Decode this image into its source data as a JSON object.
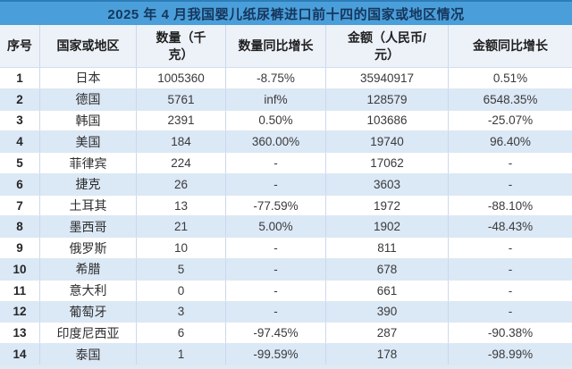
{
  "title": "2025 年 4 月我国婴儿纸尿裤进口前十四的国家或地区情况",
  "table": {
    "headers": [
      "序号",
      "国家或地区",
      "数量（千\n克）",
      "数量同比增长",
      "金额（人民币/\n元）",
      "金额同比增长"
    ],
    "rows": [
      [
        "1",
        "日本",
        "1005360",
        "-8.75%",
        "35940917",
        "0.51%"
      ],
      [
        "2",
        "德国",
        "5761",
        "inf%",
        "128579",
        "6548.35%"
      ],
      [
        "3",
        "韩国",
        "2391",
        "0.50%",
        "103686",
        "-25.07%"
      ],
      [
        "4",
        "美国",
        "184",
        "360.00%",
        "19740",
        "96.40%"
      ],
      [
        "5",
        "菲律宾",
        "224",
        "-",
        "17062",
        "-"
      ],
      [
        "6",
        "捷克",
        "26",
        "-",
        "3603",
        "-"
      ],
      [
        "7",
        "土耳其",
        "13",
        "-77.59%",
        "1972",
        "-88.10%"
      ],
      [
        "8",
        "墨西哥",
        "21",
        "5.00%",
        "1902",
        "-48.43%"
      ],
      [
        "9",
        "俄罗斯",
        "10",
        "-",
        "811",
        "-"
      ],
      [
        "10",
        "希腊",
        "5",
        "-",
        "678",
        "-"
      ],
      [
        "11",
        "意大利",
        "0",
        "-",
        "661",
        "-"
      ],
      [
        "12",
        "葡萄牙",
        "3",
        "-",
        "390",
        "-"
      ],
      [
        "13",
        "印度尼西亚",
        "6",
        "-97.45%",
        "287",
        "-90.38%"
      ],
      [
        "14",
        "泰国",
        "1",
        "-99.59%",
        "178",
        "-98.99%"
      ]
    ]
  },
  "colors": {
    "title_bg": "#4a9fda",
    "title_text": "#16365c",
    "header_bg": "#edf2f9",
    "band_bg": "#dbe8f6",
    "grid_line": "#ccd8ea"
  }
}
